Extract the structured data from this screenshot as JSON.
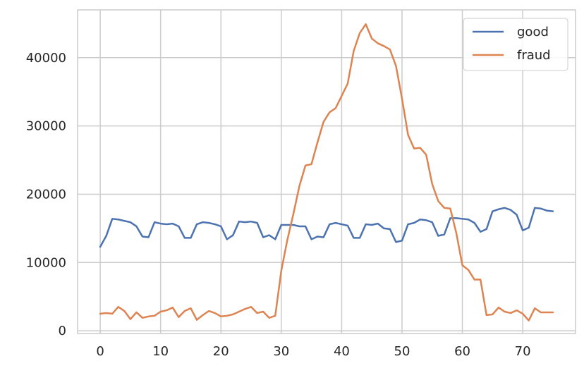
{
  "chart_data": {
    "type": "line",
    "title": "",
    "xlabel": "",
    "ylabel": "",
    "xlim": [
      -3.75,
      78.75
    ],
    "ylim": [
      -400,
      47000
    ],
    "xticks": [
      0,
      10,
      20,
      30,
      40,
      50,
      60,
      70
    ],
    "yticks": [
      0,
      10000,
      20000,
      30000,
      40000
    ],
    "grid": true,
    "legend_position": "top-right",
    "x": [
      0,
      1,
      2,
      3,
      4,
      5,
      6,
      7,
      8,
      9,
      10,
      11,
      12,
      13,
      14,
      15,
      16,
      17,
      18,
      19,
      20,
      21,
      22,
      23,
      24,
      25,
      26,
      27,
      28,
      29,
      30,
      31,
      32,
      33,
      34,
      35,
      36,
      37,
      38,
      39,
      40,
      41,
      42,
      43,
      44,
      45,
      46,
      47,
      48,
      49,
      50,
      51,
      52,
      53,
      54,
      55,
      56,
      57,
      58,
      59,
      60,
      61,
      62,
      63,
      64,
      65,
      66,
      67,
      68,
      69,
      70,
      71,
      72,
      73,
      74,
      75
    ],
    "series": [
      {
        "name": "good",
        "color": "#4c72b0",
        "values": [
          12300,
          13900,
          16400,
          16300,
          16100,
          15900,
          15300,
          13800,
          13700,
          15900,
          15700,
          15600,
          15700,
          15300,
          13600,
          13600,
          15600,
          15900,
          15800,
          15600,
          15300,
          13400,
          14000,
          16000,
          15900,
          16000,
          15800,
          13700,
          14000,
          13400,
          15500,
          15500,
          15500,
          15300,
          15300,
          13400,
          13800,
          13700,
          15600,
          15800,
          15600,
          15400,
          13600,
          13600,
          15600,
          15500,
          15700,
          15000,
          14900,
          13000,
          13200,
          15600,
          15800,
          16300,
          16200,
          15900,
          13900,
          14100,
          16500,
          16500,
          16400,
          16300,
          15800,
          14500,
          14900,
          17500,
          17800,
          18000,
          17700,
          17000,
          14700,
          15100,
          18000,
          17900,
          17600,
          17500
        ]
      },
      {
        "name": "fraud",
        "color": "#dd8452",
        "values": [
          2500,
          2600,
          2500,
          3500,
          2900,
          1700,
          2700,
          1900,
          2100,
          2200,
          2800,
          3000,
          3400,
          2000,
          2900,
          3300,
          1600,
          2300,
          2900,
          2600,
          2100,
          2200,
          2400,
          2800,
          3200,
          3500,
          2600,
          2800,
          1900,
          2200,
          8800,
          13300,
          17100,
          21200,
          24200,
          24400,
          27600,
          30600,
          32000,
          32600,
          34400,
          36200,
          41000,
          43600,
          44900,
          42800,
          42100,
          41700,
          41200,
          38800,
          34000,
          28700,
          26700,
          26800,
          25800,
          21500,
          19000,
          18000,
          17900,
          14300,
          9600,
          8900,
          7500,
          7500,
          2300,
          2400,
          3400,
          2800,
          2600,
          3000,
          2500,
          1500,
          3300,
          2700,
          2700,
          2700
        ]
      }
    ]
  }
}
